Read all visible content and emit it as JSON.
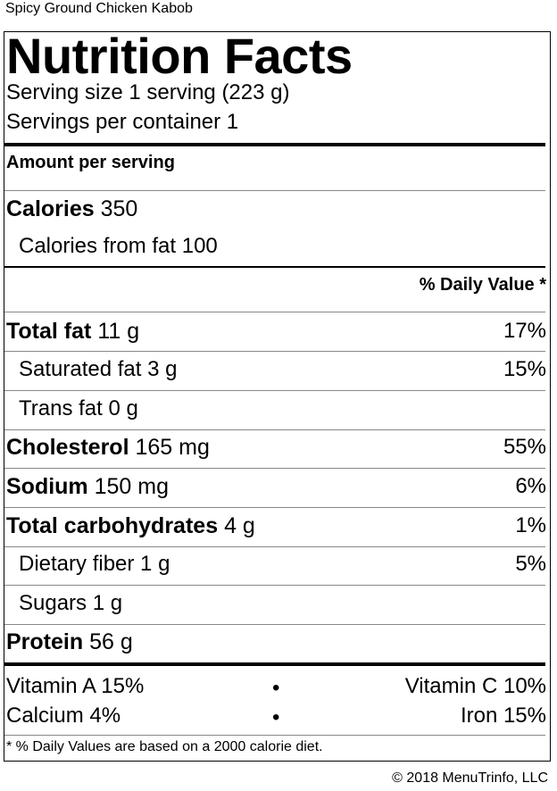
{
  "recipe_name": "Spicy Ground Chicken Kabob",
  "title": "Nutrition Facts",
  "serving_size": "Serving size 1 serving (223 g)",
  "servings_per_container": "Servings per container 1",
  "amount_per_serving": "Amount per serving",
  "calories": {
    "label": "Calories",
    "value": "350"
  },
  "calories_from_fat": "Calories from fat 100",
  "daily_value_header": "% Daily Value *",
  "nutrients": [
    {
      "label": "Total fat",
      "amount": "11 g",
      "dv": "17%"
    },
    {
      "label": "Saturated fat",
      "amount": "3 g",
      "dv": "15%"
    },
    {
      "label": "Trans fat",
      "amount": "0 g",
      "dv": ""
    },
    {
      "label": "Cholesterol",
      "amount": "165 mg",
      "dv": "55%"
    },
    {
      "label": "Sodium",
      "amount": "150 mg",
      "dv": "6%"
    },
    {
      "label": "Total carbohydrates",
      "amount": "4 g",
      "dv": "1%"
    },
    {
      "label": "Dietary fiber",
      "amount": "1 g",
      "dv": "5%"
    },
    {
      "label": "Sugars",
      "amount": "1 g",
      "dv": ""
    },
    {
      "label": "Protein",
      "amount": "56 g",
      "dv": ""
    }
  ],
  "vitamins": [
    {
      "left": "Vitamin A 15%",
      "right": "Vitamin C 10%"
    },
    {
      "left": "Calcium 4%",
      "right": "Iron 15%"
    }
  ],
  "bullet": "•",
  "footnote": "* % Daily Values are based on a 2000 calorie diet.",
  "copyright": "© 2018 MenuTrinfo, LLC"
}
